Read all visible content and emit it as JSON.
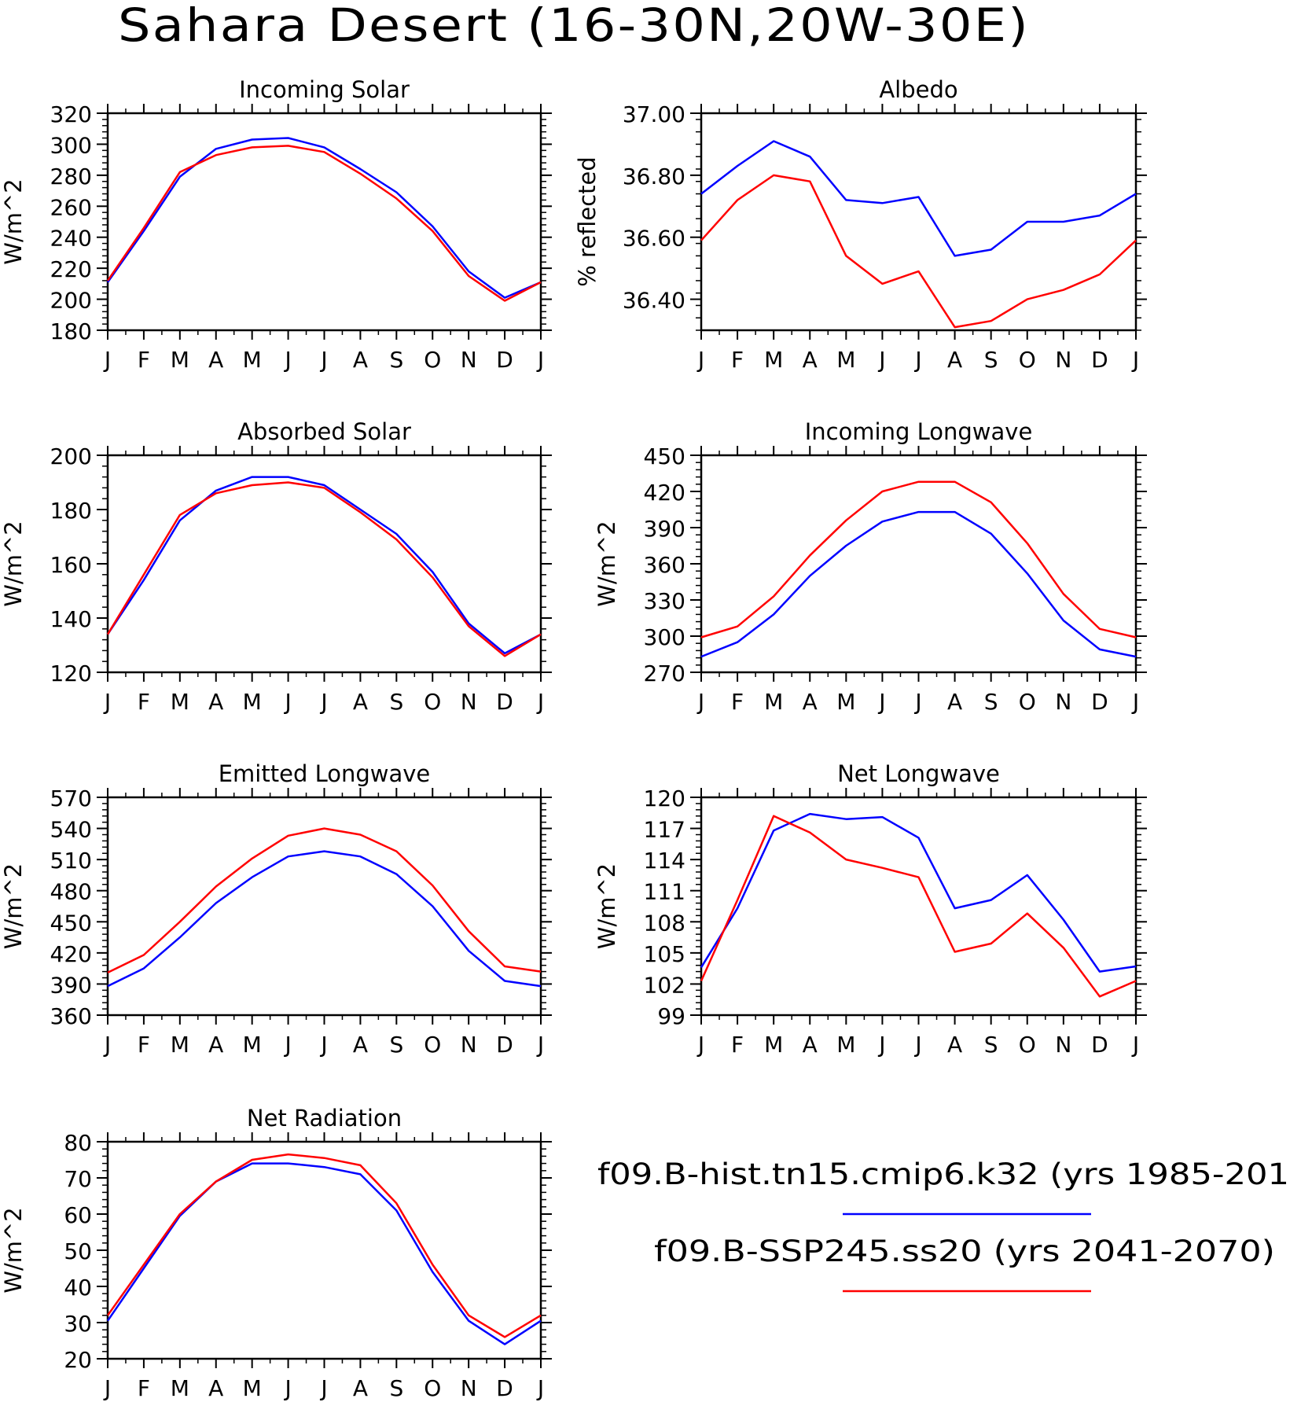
{
  "page_title": "Sahara Desert (16-30N,20W-30E)",
  "colors": {
    "hist": "#0000ff",
    "ssp": "#ff0000"
  },
  "legend": {
    "hist_label": "f09.B-hist.tn15.cmip6.k32 (yrs 1985-201",
    "ssp_label": "f09.B-SSP245.ss20 (yrs 2041-2070)"
  },
  "chart_data": [
    {
      "type": "line",
      "title": "Incoming Solar",
      "ylabel": "W/m^2",
      "categories": [
        "J",
        "F",
        "M",
        "A",
        "M",
        "J",
        "J",
        "A",
        "S",
        "O",
        "N",
        "D",
        "J"
      ],
      "ylim": [
        180,
        320
      ],
      "yticks": [
        180,
        200,
        220,
        240,
        260,
        280,
        300,
        320
      ],
      "ytick_labels": [
        "180",
        "200",
        "220",
        "240",
        "260",
        "280",
        "300",
        "320"
      ],
      "series": [
        {
          "key": "hist",
          "values": [
            211,
            244,
            279,
            297,
            303,
            304,
            298,
            284,
            269,
            247,
            218,
            201,
            211
          ]
        },
        {
          "key": "ssp",
          "values": [
            212,
            246,
            282,
            293,
            298,
            299,
            295,
            281,
            265,
            244,
            215,
            199,
            211
          ]
        }
      ]
    },
    {
      "type": "line",
      "title": "Albedo",
      "ylabel": "% reflected",
      "categories": [
        "J",
        "F",
        "M",
        "A",
        "M",
        "J",
        "J",
        "A",
        "S",
        "O",
        "N",
        "D",
        "J"
      ],
      "ylim": [
        36.3,
        37.0
      ],
      "yticks": [
        36.4,
        36.6,
        36.8,
        37.0
      ],
      "ytick_labels": [
        "36.40",
        "36.60",
        "36.80",
        "37.00"
      ],
      "series": [
        {
          "key": "hist",
          "values": [
            36.74,
            36.83,
            36.91,
            36.86,
            36.72,
            36.71,
            36.73,
            36.54,
            36.56,
            36.65,
            36.65,
            36.67,
            36.74
          ]
        },
        {
          "key": "ssp",
          "values": [
            36.59,
            36.72,
            36.8,
            36.78,
            36.54,
            36.45,
            36.49,
            36.31,
            36.33,
            36.4,
            36.43,
            36.48,
            36.59
          ]
        }
      ]
    },
    {
      "type": "line",
      "title": "Absorbed Solar",
      "ylabel": "W/m^2",
      "categories": [
        "J",
        "F",
        "M",
        "A",
        "M",
        "J",
        "J",
        "A",
        "S",
        "O",
        "N",
        "D",
        "J"
      ],
      "ylim": [
        120,
        200
      ],
      "yticks": [
        120,
        140,
        160,
        180,
        200
      ],
      "ytick_labels": [
        "120",
        "140",
        "160",
        "180",
        "200"
      ],
      "series": [
        {
          "key": "hist",
          "values": [
            134,
            154,
            176,
            187,
            192,
            192,
            189,
            180,
            171,
            157,
            138,
            127,
            134
          ]
        },
        {
          "key": "ssp",
          "values": [
            134,
            156,
            178,
            186,
            189,
            190,
            188,
            179,
            169,
            155,
            137,
            126,
            134
          ]
        }
      ]
    },
    {
      "type": "line",
      "title": "Incoming Longwave",
      "ylabel": "W/m^2",
      "categories": [
        "J",
        "F",
        "M",
        "A",
        "M",
        "J",
        "J",
        "A",
        "S",
        "O",
        "N",
        "D",
        "J"
      ],
      "ylim": [
        270,
        450
      ],
      "yticks": [
        270,
        300,
        330,
        360,
        390,
        420,
        450
      ],
      "ytick_labels": [
        "270",
        "300",
        "330",
        "360",
        "390",
        "420",
        "450"
      ],
      "series": [
        {
          "key": "hist",
          "values": [
            283,
            295,
            318,
            350,
            375,
            395,
            403,
            403,
            385,
            352,
            313,
            289,
            283
          ]
        },
        {
          "key": "ssp",
          "values": [
            299,
            308,
            333,
            367,
            396,
            420,
            428,
            428,
            411,
            377,
            335,
            306,
            299
          ]
        }
      ]
    },
    {
      "type": "line",
      "title": "Emitted Longwave",
      "ylabel": "W/m^2",
      "categories": [
        "J",
        "F",
        "M",
        "A",
        "M",
        "J",
        "J",
        "A",
        "S",
        "O",
        "N",
        "D",
        "J"
      ],
      "ylim": [
        360,
        570
      ],
      "yticks": [
        360,
        390,
        420,
        450,
        480,
        510,
        540,
        570
      ],
      "ytick_labels": [
        "360",
        "390",
        "420",
        "450",
        "480",
        "510",
        "540",
        "570"
      ],
      "series": [
        {
          "key": "hist",
          "values": [
            388,
            405,
            435,
            468,
            493,
            513,
            518,
            513,
            496,
            465,
            422,
            393,
            388
          ]
        },
        {
          "key": "ssp",
          "values": [
            401,
            418,
            450,
            484,
            511,
            533,
            540,
            534,
            518,
            485,
            441,
            407,
            402
          ]
        }
      ]
    },
    {
      "type": "line",
      "title": "Net Longwave",
      "ylabel": "W/m^2",
      "categories": [
        "J",
        "F",
        "M",
        "A",
        "M",
        "J",
        "J",
        "A",
        "S",
        "O",
        "N",
        "D",
        "J"
      ],
      "ylim": [
        99,
        120
      ],
      "yticks": [
        99,
        102,
        105,
        108,
        111,
        114,
        117,
        120
      ],
      "ytick_labels": [
        "99",
        "102",
        "105",
        "108",
        "111",
        "114",
        "117",
        "120"
      ],
      "series": [
        {
          "key": "hist",
          "values": [
            103.6,
            109.3,
            116.8,
            118.4,
            117.9,
            118.1,
            116.1,
            109.3,
            110.1,
            112.5,
            108.2,
            103.2,
            103.7
          ]
        },
        {
          "key": "ssp",
          "values": [
            102.3,
            110.1,
            118.2,
            116.6,
            114.0,
            113.2,
            112.3,
            105.1,
            105.9,
            108.8,
            105.5,
            100.8,
            102.3
          ]
        }
      ]
    },
    {
      "type": "line",
      "title": "Net Radiation",
      "ylabel": "W/m^2",
      "categories": [
        "J",
        "F",
        "M",
        "A",
        "M",
        "J",
        "J",
        "A",
        "S",
        "O",
        "N",
        "D",
        "J"
      ],
      "ylim": [
        20,
        80
      ],
      "yticks": [
        20,
        30,
        40,
        50,
        60,
        70,
        80
      ],
      "ytick_labels": [
        "20",
        "30",
        "40",
        "50",
        "60",
        "70",
        "80"
      ],
      "series": [
        {
          "key": "hist",
          "values": [
            30.5,
            45.0,
            59.5,
            69.0,
            74.0,
            74.0,
            73.0,
            71.0,
            61.0,
            44.0,
            30.5,
            24.0,
            30.5
          ]
        },
        {
          "key": "ssp",
          "values": [
            32.0,
            46.0,
            60.0,
            69.0,
            75.0,
            76.5,
            75.5,
            73.5,
            63.0,
            46.0,
            32.0,
            26.0,
            32.0
          ]
        }
      ]
    }
  ]
}
